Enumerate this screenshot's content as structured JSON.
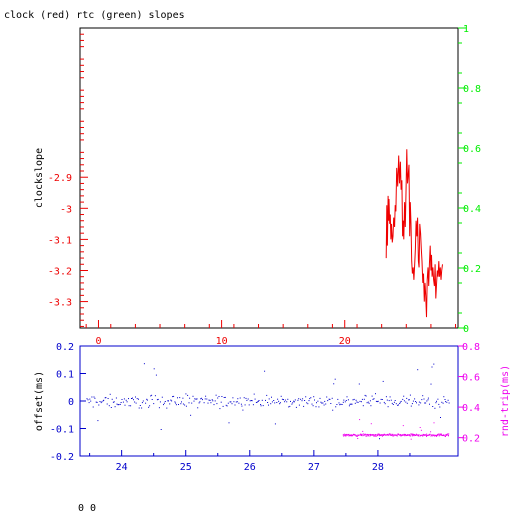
{
  "title": "clock (red) rtc (green) slopes",
  "footer_text": "0 0",
  "colors": {
    "red": "#ee0000",
    "green": "#00ee00",
    "blue": "#0000cc",
    "magenta": "#ee00ee",
    "black": "#000000"
  },
  "chart_data": [
    {
      "type": "line",
      "title": "clock (red) rtc (green) slopes",
      "ylabel": "clockslope",
      "x_ticks": [
        "0",
        "10",
        "20"
      ],
      "xlim": [
        -1.5,
        29.2
      ],
      "ylim_left": [
        -3.385,
        -2.42
      ],
      "ylim_right": [
        0,
        1
      ],
      "y_ticks_left": [
        "-2.9",
        "-3",
        "-3.1",
        "-3.2",
        "-3.3"
      ],
      "y_ticks_right": [
        "0",
        "0.2",
        "0.4",
        "0.6",
        "0.8",
        "1"
      ],
      "grid": false,
      "series": [
        {
          "color": "#ee0000",
          "x": [
            23.37,
            23.42,
            23.47,
            23.52,
            23.56,
            23.6,
            23.65,
            23.7,
            23.75,
            23.8,
            23.86,
            23.92,
            23.98,
            24.05,
            24.1,
            24.16,
            24.22,
            24.3,
            24.38,
            24.45,
            24.52,
            24.58,
            24.64,
            24.7,
            24.75,
            24.8,
            24.86,
            24.92,
            24.98,
            25.04,
            25.1,
            25.16,
            25.22,
            25.28,
            25.33,
            25.38,
            25.44,
            25.5,
            25.56,
            25.62,
            25.68,
            25.74,
            25.8,
            25.86,
            25.92,
            25.98,
            26.04,
            26.1,
            26.16,
            26.22,
            26.28,
            26.34,
            26.4,
            26.46,
            26.52,
            26.58,
            26.64,
            26.7,
            26.76,
            26.82,
            26.88,
            26.94,
            27.0,
            27.05,
            27.1,
            27.16,
            27.22,
            27.28,
            27.34,
            27.4,
            27.46,
            27.52,
            27.58,
            27.64,
            27.7,
            27.76,
            27.82,
            27.88,
            27.94
          ],
          "y": [
            -3.16,
            -2.99,
            -3.12,
            -2.96,
            -3.04,
            -2.97,
            -3.05,
            -3.02,
            -3.1,
            -3.05,
            -3.11,
            -3.09,
            -3.03,
            -3.06,
            -2.99,
            -3.01,
            -2.87,
            -2.93,
            -2.83,
            -2.92,
            -2.85,
            -2.94,
            -2.91,
            -3.09,
            -3.04,
            -3.1,
            -2.98,
            -3.06,
            -2.95,
            -2.81,
            -2.92,
            -2.89,
            -2.86,
            -3.09,
            -2.98,
            -3.05,
            -3.17,
            -3.21,
            -3.19,
            -3.23,
            -3.18,
            -3.13,
            -3.04,
            -3.09,
            -3.03,
            -3.17,
            -3.19,
            -3.05,
            -3.08,
            -3.13,
            -3.17,
            -3.24,
            -3.21,
            -3.3,
            -3.24,
            -3.28,
            -3.35,
            -3.23,
            -3.19,
            -3.25,
            -3.18,
            -3.12,
            -3.2,
            -3.15,
            -3.22,
            -3.19,
            -3.23,
            -3.25,
            -3.18,
            -3.29,
            -3.24,
            -3.2,
            -3.22,
            -3.17,
            -3.22,
            -3.19,
            -3.23,
            -3.2,
            -3.18
          ]
        }
      ]
    },
    {
      "type": "scatter",
      "ylabel_left": "offset(ms)",
      "ylabel_right": "rnd-trip(ms)",
      "x_ticks": [
        "24",
        "25",
        "26",
        "27",
        "28"
      ],
      "xlim": [
        23.35,
        29.25
      ],
      "ylim_left": [
        -0.2,
        0.2
      ],
      "ylim_right": [
        0.08,
        0.8
      ],
      "y_ticks_left": [
        "0.2",
        "0.1",
        "0",
        "-0.1",
        "-0.2"
      ],
      "y_ticks_right": [
        "0.8",
        "0.6",
        "0.4",
        "0.2"
      ],
      "series": [
        {
          "color": "#0000cc",
          "x_range": [
            23.45,
            29.1
          ],
          "y_center": 0.0,
          "y_spread": 0.035,
          "count": 360
        },
        {
          "color": "#ee00ee",
          "x_range": [
            27.45,
            29.1
          ],
          "y_center": 0.22,
          "y_spread": 0.012,
          "count": 280
        }
      ]
    }
  ]
}
